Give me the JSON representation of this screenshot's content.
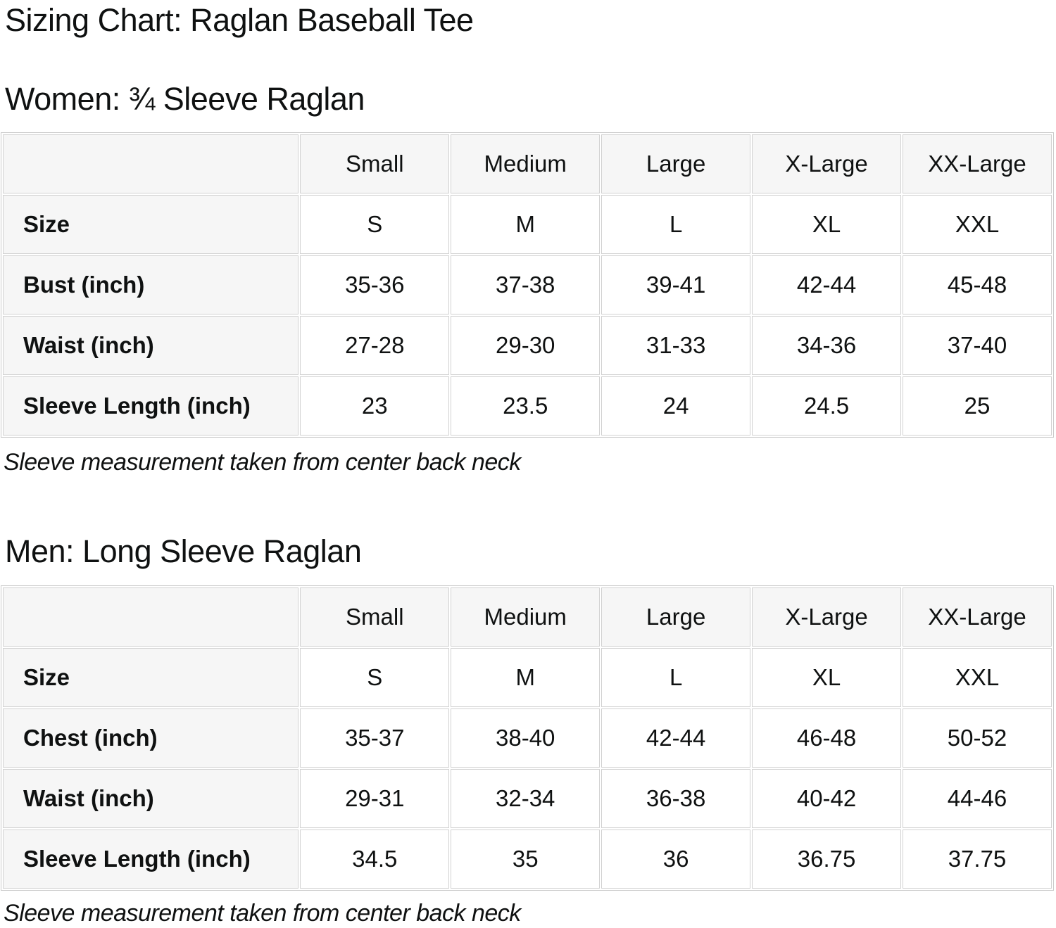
{
  "page": {
    "title": "Sizing Chart: Raglan Baseball Tee"
  },
  "colors": {
    "text": "#0f1111",
    "border": "#d2d2d2",
    "shaded_cell_bg": "#f6f6f6",
    "page_bg": "#ffffff"
  },
  "women_section": {
    "heading": "Women: ¾ Sleeve Raglan",
    "note": "Sleeve measurement taken from center back neck",
    "table": {
      "column_headers": [
        "",
        "Small",
        "Medium",
        "Large",
        "X-Large",
        "XX-Large"
      ],
      "rows": [
        {
          "label": "Size",
          "values": [
            "S",
            "M",
            "L",
            "XL",
            "XXL"
          ]
        },
        {
          "label": "Bust (inch)",
          "values": [
            "35-36",
            "37-38",
            "39-41",
            "42-44",
            "45-48"
          ]
        },
        {
          "label": "Waist (inch)",
          "values": [
            "27-28",
            "29-30",
            "31-33",
            "34-36",
            "37-40"
          ]
        },
        {
          "label": "Sleeve Length (inch)",
          "values": [
            "23",
            "23.5",
            "24",
            "24.5",
            "25"
          ]
        }
      ]
    }
  },
  "men_section": {
    "heading": "Men: Long Sleeve Raglan",
    "note": "Sleeve measurement taken from center back neck",
    "table": {
      "column_headers": [
        "",
        "Small",
        "Medium",
        "Large",
        "X-Large",
        "XX-Large"
      ],
      "rows": [
        {
          "label": "Size",
          "values": [
            "S",
            "M",
            "L",
            "XL",
            "XXL"
          ]
        },
        {
          "label": "Chest (inch)",
          "values": [
            "35-37",
            "38-40",
            "42-44",
            "46-48",
            "50-52"
          ]
        },
        {
          "label": "Waist (inch)",
          "values": [
            "29-31",
            "32-34",
            "36-38",
            "40-42",
            "44-46"
          ]
        },
        {
          "label": "Sleeve Length (inch)",
          "values": [
            "34.5",
            "35",
            "36",
            "36.75",
            "37.75"
          ]
        }
      ]
    }
  }
}
